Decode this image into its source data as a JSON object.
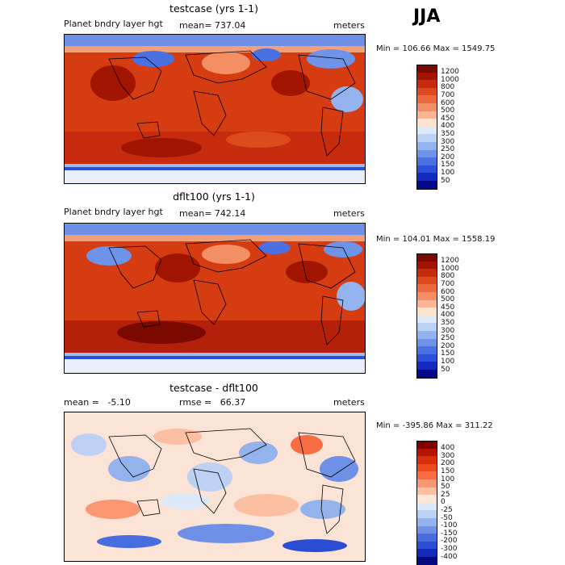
{
  "season": "JJA",
  "panels": [
    {
      "title": "testcase (yrs 1-1)",
      "left_label": "Planet bndry layer hgt",
      "center_label": "mean= 737.04",
      "right_label": "meters",
      "minmax": "Min = 106.66 Max = 1549.75",
      "colorbar": {
        "labels": [
          "1200",
          "1000",
          "800",
          "700",
          "600",
          "500",
          "450",
          "400",
          "350",
          "300",
          "250",
          "200",
          "150",
          "100",
          "50"
        ],
        "colors": [
          "#7a0a00",
          "#a01400",
          "#c52b0c",
          "#dd4a1c",
          "#ec6a3c",
          "#f48e64",
          "#f9b594",
          "#fde4cf",
          "#dfeaf8",
          "#bcd2f4",
          "#93b3ee",
          "#6f93e9",
          "#4a70e2",
          "#2a4fd8",
          "#1329c2",
          "#04098a"
        ]
      }
    },
    {
      "title": "dflt100 (yrs 1-1)",
      "left_label": "Planet bndry layer hgt",
      "center_label": "mean= 742.14",
      "right_label": "meters",
      "minmax": "Min = 104.01 Max = 1558.19",
      "colorbar": {
        "labels": [
          "1200",
          "1000",
          "800",
          "700",
          "600",
          "500",
          "450",
          "400",
          "350",
          "300",
          "250",
          "200",
          "150",
          "100",
          "50"
        ],
        "colors": [
          "#7a0a00",
          "#a01400",
          "#c52b0c",
          "#dd4a1c",
          "#ec6a3c",
          "#f48e64",
          "#f9b594",
          "#fde4cf",
          "#dfeaf8",
          "#bcd2f4",
          "#93b3ee",
          "#6f93e9",
          "#4a70e2",
          "#2a4fd8",
          "#1329c2",
          "#04098a"
        ]
      }
    },
    {
      "title": "testcase - dflt100",
      "left_label": "mean =   -5.10",
      "center_label": "rmse =   66.37",
      "right_label": "meters",
      "minmax": "Min = -395.86 Max = 311.22",
      "colorbar": {
        "labels": [
          "400",
          "300",
          "200",
          "150",
          "100",
          "50",
          "25",
          "0",
          "-25",
          "-50",
          "-100",
          "-150",
          "-200",
          "-300",
          "-400"
        ],
        "colors": [
          "#800000",
          "#b51400",
          "#d9300c",
          "#f04a1c",
          "#f86d43",
          "#fb9672",
          "#fdbfa2",
          "#fde6d8",
          "#dde9f8",
          "#bcd1f3",
          "#94b2ec",
          "#6e90e6",
          "#486ddf",
          "#2a4dd3",
          "#1329bb",
          "#050980"
        ]
      }
    }
  ]
}
